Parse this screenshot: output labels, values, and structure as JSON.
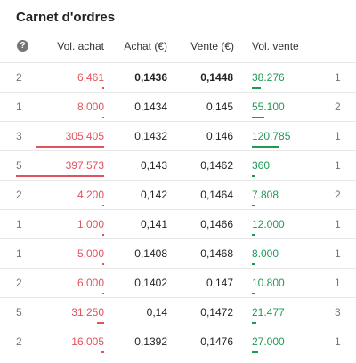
{
  "title": "Carnet d'ordres",
  "columns": [
    "Vol. achat",
    "Achat (€)",
    "Vente (€)",
    "Vol. vente"
  ],
  "rows": [
    {
      "buy_orders": "2",
      "buy_volume": {
        "value": 6461,
        "label": "6.461"
      },
      "buy_price": "0,1436",
      "sell_price": "0,1448",
      "sell_volume": {
        "value": 38276,
        "label": "38.276"
      },
      "sell_orders": "1"
    },
    {
      "buy_orders": "1",
      "buy_volume": {
        "value": 8000,
        "label": "8.000"
      },
      "buy_price": "0,1434",
      "sell_price": "0,145",
      "sell_volume": {
        "value": 55100,
        "label": "55.100"
      },
      "sell_orders": "2"
    },
    {
      "buy_orders": "3",
      "buy_volume": {
        "value": 305405,
        "label": "305.405"
      },
      "buy_price": "0,1432",
      "sell_price": "0,146",
      "sell_volume": {
        "value": 120785,
        "label": "120.785"
      },
      "sell_orders": "1"
    },
    {
      "buy_orders": "5",
      "buy_volume": {
        "value": 397573,
        "label": "397.573"
      },
      "buy_price": "0,143",
      "sell_price": "0,1462",
      "sell_volume": {
        "value": 360,
        "label": "360"
      },
      "sell_orders": "1"
    },
    {
      "buy_orders": "2",
      "buy_volume": {
        "value": 4200,
        "label": "4.200"
      },
      "buy_price": "0,142",
      "sell_price": "0,1464",
      "sell_volume": {
        "value": 7808,
        "label": "7.808"
      },
      "sell_orders": "2"
    },
    {
      "buy_orders": "1",
      "buy_volume": {
        "value": 1000,
        "label": "1.000"
      },
      "buy_price": "0,141",
      "sell_price": "0,1466",
      "sell_volume": {
        "value": 12000,
        "label": "12.000"
      },
      "sell_orders": "1"
    },
    {
      "buy_orders": "1",
      "buy_volume": {
        "value": 5000,
        "label": "5.000"
      },
      "buy_price": "0,1408",
      "sell_price": "0,1468",
      "sell_volume": {
        "value": 8000,
        "label": "8.000"
      },
      "sell_orders": "1"
    },
    {
      "buy_orders": "2",
      "buy_volume": {
        "value": 6000,
        "label": "6.000"
      },
      "buy_price": "0,1402",
      "sell_price": "0,147",
      "sell_volume": {
        "value": 10800,
        "label": "10.800"
      },
      "sell_orders": "1"
    },
    {
      "buy_orders": "5",
      "buy_volume": {
        "value": 31250,
        "label": "31.250"
      },
      "buy_price": "0,14",
      "sell_price": "0,1472",
      "sell_volume": {
        "value": 21477,
        "label": "21.477"
      },
      "sell_orders": "3"
    },
    {
      "buy_orders": "2",
      "buy_volume": {
        "value": 16005,
        "label": "16.005"
      },
      "buy_price": "0,1392",
      "sell_price": "0,1476",
      "sell_volume": {
        "value": 27000,
        "label": "27.000"
      },
      "sell_orders": "1"
    }
  ]
}
